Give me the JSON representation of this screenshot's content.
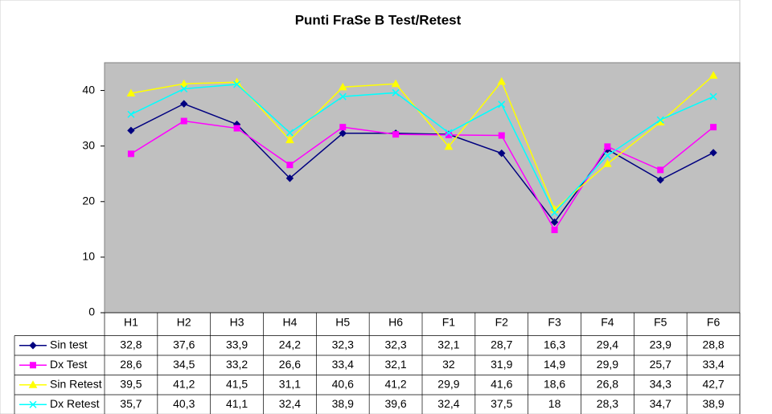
{
  "chart_data": {
    "type": "line",
    "title": "Punti FraSe B Test/Retest",
    "categories": [
      "H1",
      "H2",
      "H3",
      "H4",
      "H5",
      "H6",
      "F1",
      "F2",
      "F3",
      "F4",
      "F5",
      "F6"
    ],
    "ylim": [
      0,
      45
    ],
    "yticks": [
      0,
      10,
      20,
      30,
      40
    ],
    "grid": false,
    "plot_background": "#c0c0c0",
    "series": [
      {
        "name": "Sin test",
        "color": "#000080",
        "marker": "diamond",
        "values": [
          32.8,
          37.6,
          33.9,
          24.2,
          32.3,
          32.3,
          32.1,
          28.7,
          16.3,
          29.4,
          23.9,
          28.8
        ],
        "value_labels": [
          "32,8",
          "37,6",
          "33,9",
          "24,2",
          "32,3",
          "32,3",
          "32,1",
          "28,7",
          "16,3",
          "29,4",
          "23,9",
          "28,8"
        ]
      },
      {
        "name": "Dx Test",
        "color": "#ff00ff",
        "marker": "square",
        "values": [
          28.6,
          34.5,
          33.2,
          26.6,
          33.4,
          32.1,
          32,
          31.9,
          14.9,
          29.9,
          25.7,
          33.4
        ],
        "value_labels": [
          "28,6",
          "34,5",
          "33,2",
          "26,6",
          "33,4",
          "32,1",
          "32",
          "31,9",
          "14,9",
          "29,9",
          "25,7",
          "33,4"
        ]
      },
      {
        "name": "Sin Retest",
        "color": "#ffff00",
        "marker": "triangle",
        "values": [
          39.5,
          41.2,
          41.5,
          31.1,
          40.6,
          41.2,
          29.9,
          41.6,
          18.6,
          26.8,
          34.3,
          42.7
        ],
        "value_labels": [
          "39,5",
          "41,2",
          "41,5",
          "31,1",
          "40,6",
          "41,2",
          "29,9",
          "41,6",
          "18,6",
          "26,8",
          "34,3",
          "42,7"
        ]
      },
      {
        "name": "Dx Retest",
        "color": "#00ffff",
        "marker": "x",
        "values": [
          35.7,
          40.3,
          41.1,
          32.4,
          38.9,
          39.6,
          32.4,
          37.5,
          18,
          28.3,
          34.7,
          38.9
        ],
        "value_labels": [
          "35,7",
          "40,3",
          "41,1",
          "32,4",
          "38,9",
          "39,6",
          "32,4",
          "37,5",
          "18",
          "28,3",
          "34,7",
          "38,9"
        ]
      }
    ]
  }
}
